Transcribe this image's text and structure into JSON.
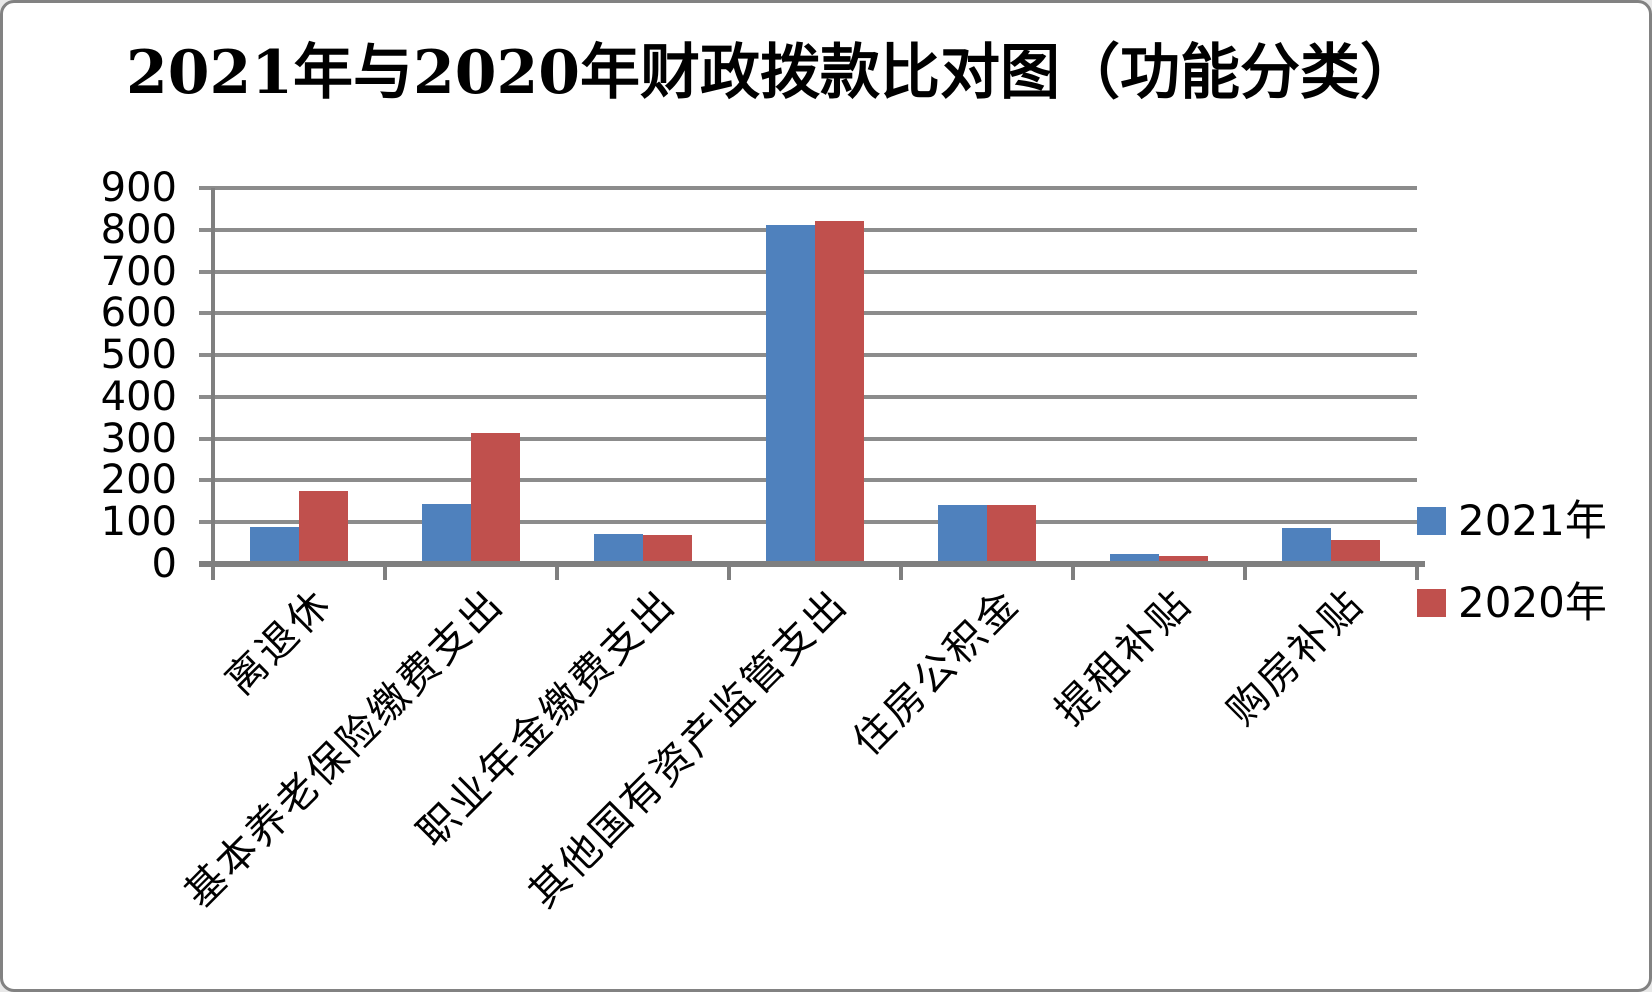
{
  "title": "2021年与2020年财政拨款比对图（功能分类）",
  "legend": {
    "position": "right",
    "items": [
      {
        "label": "2021年",
        "color": "#4F81BD"
      },
      {
        "label": "2020年",
        "color": "#C0504D"
      }
    ]
  },
  "y_axis": {
    "min": 0,
    "max": 900,
    "step": 100,
    "tick_labels": [
      "0",
      "100",
      "200",
      "300",
      "400",
      "500",
      "600",
      "700",
      "800",
      "900"
    ]
  },
  "chart_data": {
    "type": "bar",
    "title": "2021年与2020年财政拨款比对图（功能分类）",
    "categories": [
      "离退休",
      "基本养老保险缴费支出",
      "职业年金缴费支出",
      "其他国有资产监管支出",
      "住房公积金",
      "提租补贴",
      "购房补贴"
    ],
    "series": [
      {
        "name": "2021年",
        "color": "#4F81BD",
        "values": [
          88,
          143,
          71,
          811,
          141,
          25,
          85
        ]
      },
      {
        "name": "2020年",
        "color": "#C0504D",
        "values": [
          175,
          313,
          69,
          821,
          141,
          20,
          58
        ]
      }
    ],
    "xlabel": "",
    "ylabel": "",
    "ylim": [
      0,
      900
    ],
    "grid": true,
    "gridline_color": "#8C8C8C",
    "axis_color": "#7F7F7F",
    "legend_position": "right",
    "category_label_rotation_deg": -45
  }
}
